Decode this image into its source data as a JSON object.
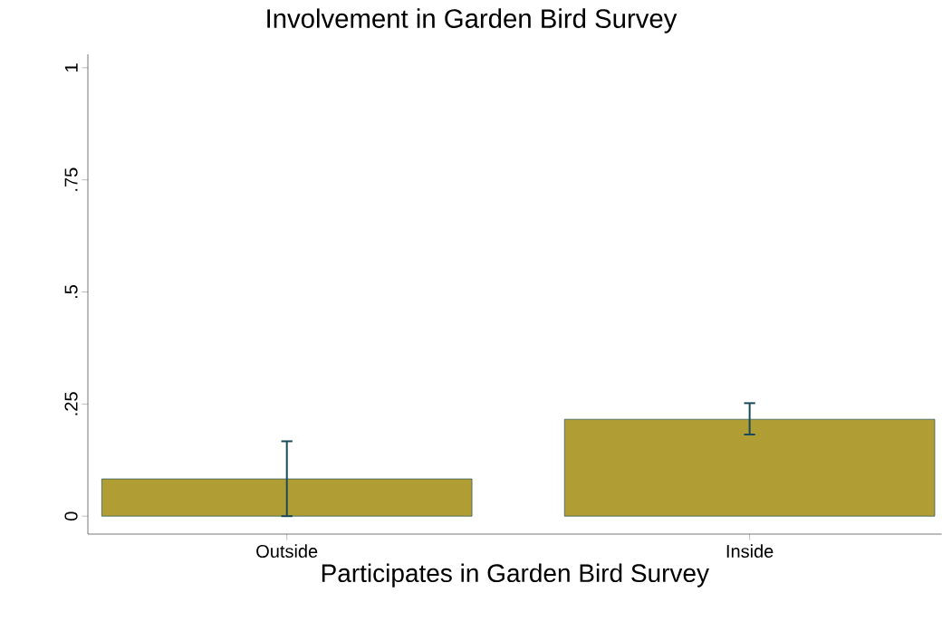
{
  "chart_data": {
    "type": "bar",
    "title": "Involvement in Garden Bird Survey",
    "xlabel": "Participates in Garden Bird Survey",
    "categories": [
      "Outside",
      "Inside"
    ],
    "values": [
      0.083,
      0.216
    ],
    "errors": [
      [
        0,
        0.167
      ],
      [
        0.182,
        0.252
      ]
    ],
    "color": "#b09e35",
    "ylim": [
      -0.04,
      1.03
    ],
    "yticks": [
      {
        "value": 0,
        "label": "0"
      },
      {
        "value": 0.25,
        "label": ".25"
      },
      {
        "value": 0.5,
        "label": ".5"
      },
      {
        "value": 0.75,
        "label": ".75"
      },
      {
        "value": 1,
        "label": "1"
      }
    ],
    "grid": false
  }
}
